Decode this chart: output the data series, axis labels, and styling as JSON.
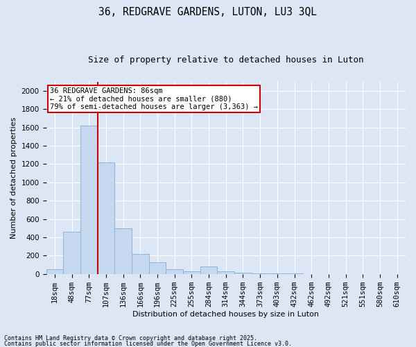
{
  "title1": "36, REDGRAVE GARDENS, LUTON, LU3 3QL",
  "title2": "Size of property relative to detached houses in Luton",
  "xlabel": "Distribution of detached houses by size in Luton",
  "ylabel": "Number of detached properties",
  "categories": [
    "18sqm",
    "48sqm",
    "77sqm",
    "107sqm",
    "136sqm",
    "166sqm",
    "196sqm",
    "225sqm",
    "255sqm",
    "284sqm",
    "314sqm",
    "344sqm",
    "373sqm",
    "403sqm",
    "432sqm",
    "462sqm",
    "492sqm",
    "521sqm",
    "551sqm",
    "580sqm",
    "610sqm"
  ],
  "values": [
    50,
    460,
    1620,
    1220,
    500,
    220,
    130,
    50,
    30,
    80,
    30,
    15,
    5,
    3,
    2,
    1,
    1,
    0,
    0,
    0,
    0
  ],
  "bar_color": "#c5d8f0",
  "bar_edgecolor": "#8ab4d8",
  "background_color": "#dce6f5",
  "grid_color": "#ffffff",
  "vline_color": "#cc0000",
  "annotation_text": "36 REDGRAVE GARDENS: 86sqm\n← 21% of detached houses are smaller (880)\n79% of semi-detached houses are larger (3,363) →",
  "annotation_box_facecolor": "#ffffff",
  "annotation_box_edgecolor": "#cc0000",
  "ylim": [
    0,
    2100
  ],
  "yticks": [
    0,
    200,
    400,
    600,
    800,
    1000,
    1200,
    1400,
    1600,
    1800,
    2000
  ],
  "footnote1": "Contains HM Land Registry data © Crown copyright and database right 2025.",
  "footnote2": "Contains public sector information licensed under the Open Government Licence v3.0.",
  "title1_fontsize": 10.5,
  "title2_fontsize": 9,
  "axis_label_fontsize": 8,
  "tick_fontsize": 7.5,
  "annotation_fontsize": 7.5,
  "footnote_fontsize": 6
}
